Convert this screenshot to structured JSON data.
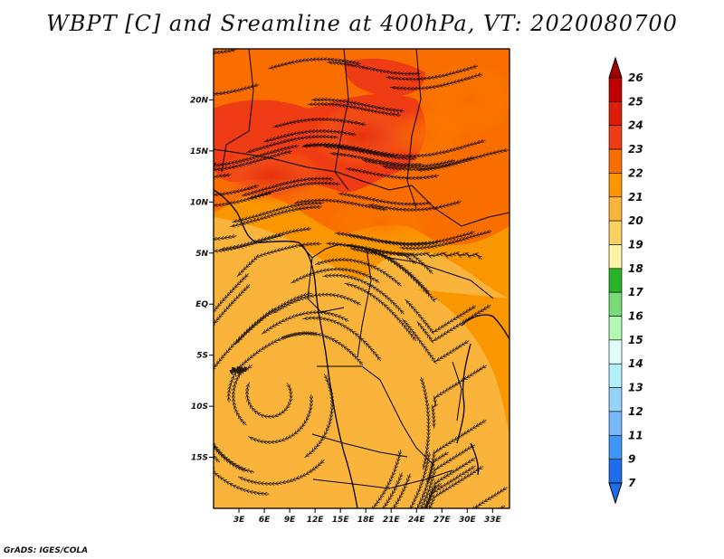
{
  "title": "WBPT [C] and Sreamline at 400hPa, VT: 2020080700",
  "credit": "GrADS: IGES/COLA",
  "map": {
    "lon_range": [
      0,
      35
    ],
    "lat_range": [
      -20,
      25
    ],
    "lat_ticks": [
      {
        "value": 20,
        "label": "20N"
      },
      {
        "value": 15,
        "label": "15N"
      },
      {
        "value": 10,
        "label": "10N"
      },
      {
        "value": 5,
        "label": "5N"
      },
      {
        "value": 0,
        "label": "EQ"
      },
      {
        "value": -5,
        "label": "5S"
      },
      {
        "value": -10,
        "label": "10S"
      },
      {
        "value": -15,
        "label": "15S"
      }
    ],
    "lon_ticks": [
      {
        "value": 3,
        "label": "3E"
      },
      {
        "value": 6,
        "label": "6E"
      },
      {
        "value": 9,
        "label": "9E"
      },
      {
        "value": 12,
        "label": "12E"
      },
      {
        "value": 15,
        "label": "15E"
      },
      {
        "value": 18,
        "label": "18E"
      },
      {
        "value": 21,
        "label": "21E"
      },
      {
        "value": 24,
        "label": "24E"
      },
      {
        "value": 27,
        "label": "27E"
      },
      {
        "value": 30,
        "label": "30E"
      },
      {
        "value": 33,
        "label": "33E"
      }
    ]
  },
  "colorbar": {
    "levels": [
      {
        "label": "26",
        "color": "#a50000"
      },
      {
        "label": "25",
        "color": "#c00000"
      },
      {
        "label": "24",
        "color": "#dc1e0a"
      },
      {
        "label": "23",
        "color": "#f03c14"
      },
      {
        "label": "22",
        "color": "#fa6e00"
      },
      {
        "label": "21",
        "color": "#fa9600"
      },
      {
        "label": "20",
        "color": "#fab43c"
      },
      {
        "label": "19",
        "color": "#fad264"
      },
      {
        "label": "18",
        "color": "#fff5a5"
      },
      {
        "label": "17",
        "color": "#28b428"
      },
      {
        "label": "16",
        "color": "#78dc78"
      },
      {
        "label": "15",
        "color": "#b4fab4"
      },
      {
        "label": "14",
        "color": "#e1fffa"
      },
      {
        "label": "13",
        "color": "#b4f0fa"
      },
      {
        "label": "12",
        "color": "#96d2fa"
      },
      {
        "label": "11",
        "color": "#78b9fa"
      },
      {
        "label": "9",
        "color": "#3c96f5"
      },
      {
        "label": "7",
        "color": "#1e6eeb"
      }
    ],
    "bottom_color": "#1e6eeb"
  }
}
